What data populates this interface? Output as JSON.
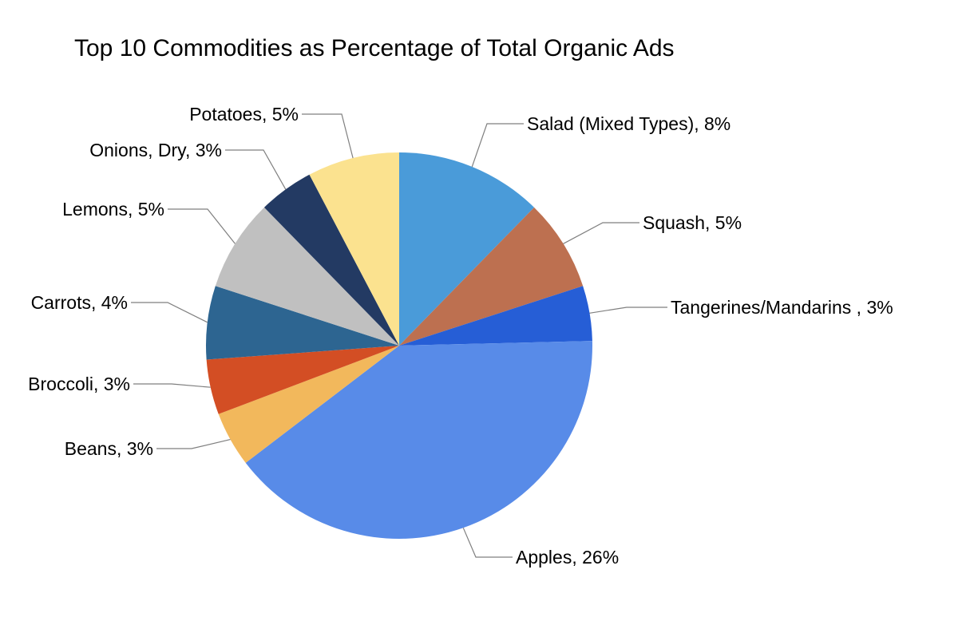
{
  "chart_data": {
    "type": "pie",
    "title": "Top 10 Commodities as Percentage of Total Organic Ads",
    "start": "12 o'clock",
    "direction": "clockwise",
    "slices": [
      {
        "label": "Salad (Mixed Types), 8%",
        "name": "Salad (Mixed Types)",
        "value": 8,
        "color": "#4a9bd9"
      },
      {
        "label": "Squash, 5%",
        "name": "Squash",
        "value": 5,
        "color": "#bd7050"
      },
      {
        "label": "Tangerines/Mandarins , 3%",
        "name": "Tangerines/Mandarins",
        "value": 3,
        "color": "#265ed6"
      },
      {
        "label": "Apples, 26%",
        "name": "Apples",
        "value": 26,
        "color": "#588be8"
      },
      {
        "label": "Beans, 3%",
        "name": "Beans",
        "value": 3,
        "color": "#f2b85c"
      },
      {
        "label": "Broccoli, 3%",
        "name": "Broccoli",
        "value": 3,
        "color": "#d34e24"
      },
      {
        "label": "Carrots, 4%",
        "name": "Carrots",
        "value": 4,
        "color": "#2d6591"
      },
      {
        "label": "Lemons, 5%",
        "name": "Lemons",
        "value": 5,
        "color": "#c0c0c0"
      },
      {
        "label": "Onions, Dry, 3%",
        "name": "Onions, Dry",
        "value": 3,
        "color": "#233a63"
      },
      {
        "label": "Potatoes, 5%",
        "name": "Potatoes",
        "value": 5,
        "color": "#fbe28f"
      }
    ]
  }
}
